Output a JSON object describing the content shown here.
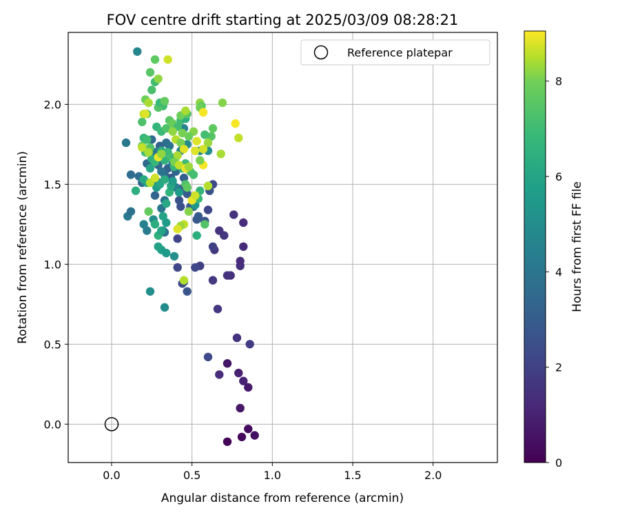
{
  "chart_data": {
    "type": "scatter",
    "title": "FOV centre drift starting at 2025/03/09 08:28:21",
    "xlabel": "Angular distance from reference (arcmin)",
    "ylabel": "Rotation from reference (arcmin)",
    "xlim": [
      -0.27,
      2.4
    ],
    "ylim": [
      -0.24,
      2.45
    ],
    "xticks": [
      0.0,
      0.5,
      1.0,
      1.5,
      2.0
    ],
    "xtick_labels": [
      "0.0",
      "0.5",
      "1.0",
      "1.5",
      "2.0"
    ],
    "yticks": [
      0.0,
      0.5,
      1.0,
      1.5,
      2.0
    ],
    "ytick_labels": [
      "0.0",
      "0.5",
      "1.0",
      "1.5",
      "2.0"
    ],
    "grid": true,
    "legend": {
      "position": "top-right",
      "entries": [
        {
          "label": "Reference platepar",
          "marker": "open-circle"
        }
      ]
    },
    "reference_point": {
      "x": 0.0,
      "y": 0.0
    },
    "colorbar": {
      "label": "Hours from first FF file",
      "colormap": "viridis",
      "range": [
        0,
        9.05
      ],
      "ticks": [
        0,
        2,
        4,
        6,
        8
      ],
      "tick_labels": [
        "0",
        "2",
        "4",
        "6",
        "8"
      ]
    },
    "columns": [
      "x",
      "y",
      "hours"
    ],
    "points": [
      [
        0.72,
        -0.11,
        0.05
      ],
      [
        0.81,
        -0.08,
        0.2
      ],
      [
        0.85,
        -0.03,
        0.3
      ],
      [
        0.89,
        -0.07,
        0.4
      ],
      [
        0.8,
        0.1,
        0.6
      ],
      [
        0.85,
        0.23,
        0.7
      ],
      [
        0.82,
        0.27,
        1.0
      ],
      [
        0.79,
        0.32,
        0.9
      ],
      [
        0.72,
        0.38,
        0.6
      ],
      [
        0.67,
        0.31,
        1.3
      ],
      [
        0.6,
        0.42,
        2.3
      ],
      [
        0.78,
        0.54,
        1.5
      ],
      [
        0.86,
        0.5,
        1.8
      ],
      [
        0.66,
        0.72,
        1.6
      ],
      [
        0.74,
        0.93,
        1.4
      ],
      [
        0.72,
        0.93,
        1.5
      ],
      [
        0.8,
        0.99,
        1.4
      ],
      [
        0.8,
        1.02,
        1.3
      ],
      [
        0.82,
        1.11,
        1.2
      ],
      [
        0.64,
        1.09,
        1.7
      ],
      [
        0.63,
        1.11,
        2.0
      ],
      [
        0.7,
        1.18,
        1.6
      ],
      [
        0.67,
        1.21,
        1.5
      ],
      [
        0.82,
        1.26,
        1.3
      ],
      [
        0.76,
        1.31,
        1.5
      ],
      [
        0.63,
        0.9,
        1.7
      ],
      [
        0.55,
        0.99,
        2.0
      ],
      [
        0.52,
        0.98,
        2.2
      ],
      [
        0.47,
        0.83,
        2.7
      ],
      [
        0.44,
        0.88,
        2.3
      ],
      [
        0.45,
        0.89,
        2.5
      ],
      [
        0.41,
        0.98,
        2.2
      ],
      [
        0.41,
        1.16,
        2.1
      ],
      [
        0.6,
        1.34,
        2.2
      ],
      [
        0.53,
        1.28,
        2.8
      ],
      [
        0.58,
        1.27,
        2.6
      ],
      [
        0.54,
        1.3,
        2.9
      ],
      [
        0.49,
        1.36,
        2.8
      ],
      [
        0.43,
        1.36,
        2.5
      ],
      [
        0.42,
        1.4,
        2.6
      ],
      [
        0.47,
        1.44,
        2.9
      ],
      [
        0.51,
        1.36,
        3.1
      ],
      [
        0.63,
        1.5,
        2.3
      ],
      [
        0.61,
        1.46,
        2.6
      ],
      [
        0.43,
        1.47,
        2.9
      ],
      [
        0.37,
        1.54,
        2.8
      ],
      [
        0.45,
        1.54,
        3.1
      ],
      [
        0.35,
        1.6,
        3.2
      ],
      [
        0.33,
        1.56,
        3.5
      ],
      [
        0.4,
        1.58,
        3.3
      ],
      [
        0.29,
        1.62,
        3.4
      ],
      [
        0.25,
        1.78,
        3.6
      ],
      [
        0.3,
        1.74,
        3.2
      ],
      [
        0.34,
        1.76,
        3.6
      ],
      [
        0.36,
        1.74,
        3.9
      ],
      [
        0.22,
        1.63,
        3.4
      ],
      [
        0.19,
        1.51,
        3.4
      ],
      [
        0.17,
        1.55,
        3.6
      ],
      [
        0.12,
        1.56,
        3.6
      ],
      [
        0.1,
        1.3,
        4.1
      ],
      [
        0.12,
        1.33,
        3.8
      ],
      [
        0.09,
        1.76,
        4.1
      ],
      [
        0.27,
        1.43,
        3.3
      ],
      [
        0.33,
        1.2,
        3.7
      ],
      [
        0.32,
        1.21,
        4.2
      ],
      [
        0.31,
        1.35,
        4.0
      ],
      [
        0.33,
        1.4,
        3.8
      ],
      [
        0.2,
        1.25,
        4.5
      ],
      [
        0.22,
        1.21,
        4.2
      ],
      [
        0.16,
        2.33,
        4.7
      ],
      [
        0.26,
        1.28,
        5.0
      ],
      [
        0.24,
        0.83,
        5.0
      ],
      [
        0.33,
        0.73,
        4.9
      ],
      [
        0.28,
        1.52,
        4.2
      ],
      [
        0.31,
        1.58,
        3.9
      ],
      [
        0.27,
        1.7,
        4.0
      ],
      [
        0.38,
        1.63,
        4.1
      ],
      [
        0.4,
        1.48,
        4.3
      ],
      [
        0.43,
        1.71,
        4.4
      ],
      [
        0.45,
        1.85,
        4.6
      ],
      [
        0.47,
        1.75,
        4.8
      ],
      [
        0.55,
        1.71,
        4.8
      ],
      [
        0.6,
        1.71,
        5.0
      ],
      [
        0.39,
        1.05,
        5.0
      ],
      [
        0.34,
        1.07,
        5.5
      ],
      [
        0.31,
        1.09,
        5.6
      ],
      [
        0.29,
        1.11,
        5.8
      ],
      [
        0.34,
        1.26,
        5.6
      ],
      [
        0.32,
        1.3,
        5.9
      ],
      [
        0.29,
        1.18,
        6.5
      ],
      [
        0.31,
        1.21,
        5.9
      ],
      [
        0.34,
        1.38,
        6.1
      ],
      [
        0.27,
        1.25,
        6.3
      ],
      [
        0.22,
        1.51,
        5.9
      ],
      [
        0.2,
        1.53,
        6.1
      ],
      [
        0.28,
        1.48,
        5.6
      ],
      [
        0.3,
        1.5,
        6.0
      ],
      [
        0.33,
        1.53,
        6.3
      ],
      [
        0.36,
        1.45,
        6.6
      ],
      [
        0.37,
        1.49,
        6.0
      ],
      [
        0.38,
        1.52,
        5.6
      ],
      [
        0.42,
        1.45,
        5.5
      ],
      [
        0.52,
        1.37,
        5.4
      ],
      [
        0.53,
        1.18,
        6.4
      ],
      [
        0.51,
        1.41,
        6.5
      ],
      [
        0.55,
        1.46,
        6.7
      ],
      [
        0.54,
        1.41,
        6.9
      ],
      [
        0.58,
        1.25,
        7.4
      ],
      [
        0.24,
        1.6,
        6.0
      ],
      [
        0.25,
        1.66,
        6.4
      ],
      [
        0.27,
        1.64,
        6.8
      ],
      [
        0.31,
        1.71,
        6.3
      ],
      [
        0.33,
        1.65,
        6.6
      ],
      [
        0.35,
        1.7,
        6.9
      ],
      [
        0.37,
        1.67,
        7.1
      ],
      [
        0.39,
        1.61,
        6.8
      ],
      [
        0.4,
        1.67,
        6.4
      ],
      [
        0.44,
        1.6,
        6.6
      ],
      [
        0.46,
        1.63,
        6.9
      ],
      [
        0.49,
        1.58,
        7.3
      ],
      [
        0.51,
        1.56,
        7.1
      ],
      [
        0.46,
        1.5,
        7.3
      ],
      [
        0.47,
        1.48,
        7.6
      ],
      [
        0.15,
        1.46,
        6.4
      ],
      [
        0.23,
        1.33,
        7.7
      ],
      [
        0.2,
        1.79,
        6.8
      ],
      [
        0.22,
        1.78,
        7.0
      ],
      [
        0.24,
        1.73,
        7.4
      ],
      [
        0.21,
        1.7,
        7.1
      ],
      [
        0.19,
        1.74,
        7.6
      ],
      [
        0.28,
        1.86,
        6.7
      ],
      [
        0.31,
        1.83,
        6.9
      ],
      [
        0.34,
        1.85,
        7.3
      ],
      [
        0.36,
        1.9,
        7.5
      ],
      [
        0.38,
        1.88,
        7.8
      ],
      [
        0.41,
        1.86,
        7.1
      ],
      [
        0.43,
        1.9,
        7.0
      ],
      [
        0.46,
        1.91,
        6.4
      ],
      [
        0.47,
        1.94,
        7.5
      ],
      [
        0.43,
        1.93,
        7.9
      ],
      [
        0.32,
        1.99,
        7.0
      ],
      [
        0.29,
        1.98,
        7.4
      ],
      [
        0.3,
        2.01,
        6.9
      ],
      [
        0.33,
        2.02,
        7.7
      ],
      [
        0.22,
        1.94,
        7.3
      ],
      [
        0.19,
        1.89,
        7.3
      ],
      [
        0.21,
        2.03,
        7.9
      ],
      [
        0.25,
        2.09,
        7.2
      ],
      [
        0.27,
        2.28,
        7.6
      ],
      [
        0.24,
        2.2,
        7.5
      ],
      [
        0.27,
        2.14,
        7.0
      ],
      [
        0.29,
        2.16,
        8.2
      ],
      [
        0.35,
        2.28,
        8.7
      ],
      [
        0.2,
        1.94,
        8.6
      ],
      [
        0.23,
        2.01,
        8.4
      ],
      [
        0.46,
        1.96,
        8.4
      ],
      [
        0.55,
        2.01,
        8.2
      ],
      [
        0.56,
        1.99,
        7.6
      ],
      [
        0.55,
        1.98,
        7.9
      ],
      [
        0.57,
        1.95,
        9.0
      ],
      [
        0.69,
        2.01,
        8.1
      ],
      [
        0.63,
        1.85,
        7.6
      ],
      [
        0.62,
        1.8,
        7.4
      ],
      [
        0.58,
        1.81,
        7.1
      ],
      [
        0.6,
        1.76,
        8.3
      ],
      [
        0.57,
        1.72,
        8.7
      ],
      [
        0.53,
        1.77,
        8.8
      ],
      [
        0.51,
        1.83,
        8.1
      ],
      [
        0.48,
        1.8,
        7.8
      ],
      [
        0.44,
        1.82,
        8.0
      ],
      [
        0.4,
        1.78,
        8.5
      ],
      [
        0.38,
        1.83,
        8.2
      ],
      [
        0.43,
        1.76,
        8.0
      ],
      [
        0.45,
        1.72,
        8.8
      ],
      [
        0.41,
        1.68,
        8.4
      ],
      [
        0.39,
        1.64,
        8.0
      ],
      [
        0.42,
        1.62,
        8.6
      ],
      [
        0.46,
        1.6,
        8.9
      ],
      [
        0.48,
        1.61,
        8.3
      ],
      [
        0.57,
        1.62,
        9.0
      ],
      [
        0.6,
        1.49,
        8.5
      ],
      [
        0.55,
        1.65,
        8.0
      ],
      [
        0.52,
        1.71,
        8.8
      ],
      [
        0.68,
        1.69,
        8.4
      ],
      [
        0.77,
        1.88,
        9.0
      ],
      [
        0.79,
        1.79,
        8.6
      ],
      [
        0.5,
        1.4,
        8.9
      ],
      [
        0.48,
        1.33,
        8.1
      ],
      [
        0.45,
        1.25,
        8.6
      ],
      [
        0.43,
        1.24,
        8.3
      ],
      [
        0.41,
        1.22,
        8.8
      ],
      [
        0.45,
        0.9,
        8.5
      ],
      [
        0.21,
        1.94,
        8.8
      ],
      [
        0.23,
        1.7,
        8.4
      ],
      [
        0.19,
        1.73,
        8.6
      ],
      [
        0.29,
        1.67,
        8.9
      ],
      [
        0.31,
        1.69,
        8.2
      ],
      [
        0.24,
        1.51,
        8.5
      ],
      [
        0.27,
        1.54,
        8.7
      ],
      [
        0.52,
        1.43,
        8.7
      ]
    ]
  }
}
